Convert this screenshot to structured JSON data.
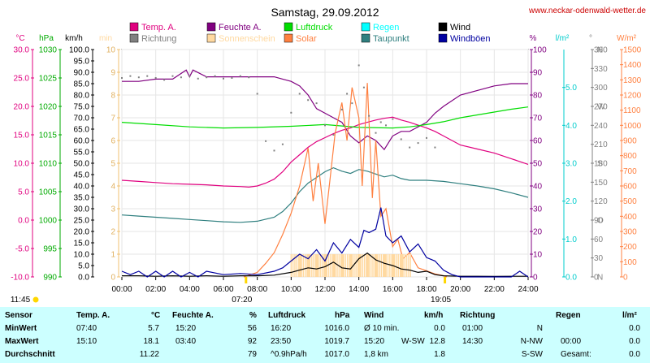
{
  "header": {
    "title": "Samstag, 29.09.2012",
    "site": "www.neckar-odenwald-wetter.de"
  },
  "legend": [
    {
      "label": "Temp. A.",
      "color": "#e0007f"
    },
    {
      "label": "Richtung",
      "color": "#808080"
    },
    {
      "label": "Feuchte A.",
      "color": "#800080"
    },
    {
      "label": "Sonnenschein",
      "color": "#ffd9a0"
    },
    {
      "label": "Luftdruck",
      "color": "#00dd00"
    },
    {
      "label": "Solar",
      "color": "#ff8040"
    },
    {
      "label": "Regen",
      "color": "#00ffff"
    },
    {
      "label": "Taupunkt",
      "color": "#2f7f7f"
    },
    {
      "label": "Wind",
      "color": "#000000"
    },
    {
      "label": "Windböen",
      "color": "#0000a0"
    }
  ],
  "axes": {
    "temp": {
      "unit": "°C",
      "color": "#e0007f",
      "ticks": [
        "30.0",
        "25.0",
        "20.0",
        "15.0",
        "10.0",
        "5.0",
        "0.0",
        "-5.0",
        "-10.0"
      ]
    },
    "pressure": {
      "unit": "hPa",
      "color": "#00aa00",
      "ticks": [
        "1030",
        "1025",
        "1020",
        "1015",
        "1010",
        "1005",
        "1000",
        "995",
        "990"
      ]
    },
    "wind": {
      "unit": "km/h",
      "color": "#000000",
      "ticks": [
        "100.0",
        "95.0",
        "90.0",
        "85.0",
        "80.0",
        "75.0",
        "70.0",
        "65.0",
        "60.0",
        "55.0",
        "50.0",
        "45.0",
        "40.0",
        "35.0",
        "30.0",
        "25.0",
        "20.0",
        "15.0",
        "10.0",
        "5.0",
        "0.0"
      ]
    },
    "sun": {
      "unit": "min",
      "color": "#ffd9a0",
      "ticks": [
        "10",
        "9",
        "8",
        "7",
        "6",
        "5",
        "4",
        "3",
        "2",
        "1",
        "0"
      ]
    },
    "humidity": {
      "unit": "%",
      "color": "#800080",
      "ticks": [
        "100",
        "90",
        "80",
        "70",
        "60",
        "50",
        "40",
        "30",
        "20",
        "10",
        "0"
      ]
    },
    "rain": {
      "unit": "l/m²",
      "color": "#00cccc",
      "ticks": [
        "5.0",
        "4.0",
        "3.0",
        "2.0",
        "1.0",
        "0.0"
      ]
    },
    "direction": {
      "unit": "°",
      "color": "#808080",
      "ticks": [
        "360",
        "330",
        "300",
        "270",
        "240",
        "210",
        "180",
        "150",
        "120",
        "90",
        "60",
        "30",
        "0"
      ],
      "labels": [
        "N",
        "",
        "",
        "W",
        "",
        "",
        "S",
        "",
        "",
        "O",
        "",
        "",
        "N"
      ]
    },
    "solar": {
      "unit": "W/m²",
      "color": "#ff8040",
      "ticks": [
        "1500",
        "1400",
        "1300",
        "1200",
        "1100",
        "1000",
        "900",
        "800",
        "700",
        "600",
        "500",
        "400",
        "300",
        "200",
        "100",
        "0"
      ]
    },
    "x": {
      "ticks": [
        "00:00",
        "02:00",
        "04:00",
        "06:00",
        "08:00",
        "10:00",
        "12:00",
        "14:00",
        "16:00",
        "18:00",
        "20:00",
        "22:00",
        "24:00"
      ]
    }
  },
  "markers": {
    "moonset": "11:45",
    "sunrise": "07:20",
    "sunset": "19:05"
  },
  "chart_data": {
    "type": "line",
    "title": "Samstag, 29.09.2012",
    "x_range": [
      0,
      24
    ],
    "series": [
      {
        "name": "Temp. A.",
        "axis": "°C",
        "ylim": [
          -10,
          30
        ],
        "x": [
          0,
          1,
          2,
          3,
          4,
          5,
          6,
          7,
          7.5,
          8,
          8.5,
          9,
          9.5,
          10,
          10.5,
          11,
          11.5,
          12,
          12.5,
          13,
          13.5,
          14,
          14.5,
          15,
          15.5,
          16,
          16.5,
          17,
          17.5,
          18,
          18.5,
          19,
          20,
          21,
          22,
          23,
          24
        ],
        "y": [
          7.0,
          6.8,
          6.6,
          6.4,
          6.3,
          6.2,
          6.0,
          5.9,
          5.8,
          6.0,
          6.5,
          7.2,
          8.5,
          10.2,
          11.5,
          12.8,
          13.8,
          14.5,
          15.2,
          15.8,
          16.2,
          16.8,
          17.2,
          17.6,
          17.9,
          18.1,
          17.6,
          17.2,
          16.7,
          16.2,
          15.6,
          14.8,
          13.2,
          12.5,
          11.8,
          10.8,
          9.8
        ]
      },
      {
        "name": "Feuchte A.",
        "axis": "%",
        "ylim": [
          0,
          100
        ],
        "x": [
          0,
          1,
          2,
          3,
          3.8,
          4,
          4.2,
          5,
          6,
          7,
          7.5,
          8,
          8.5,
          9,
          9.5,
          10,
          10.5,
          11,
          11.5,
          12,
          12.5,
          13,
          13.5,
          14,
          14.5,
          15,
          15.5,
          16,
          16.5,
          17,
          17.5,
          18,
          18.5,
          19,
          20,
          21,
          22,
          23,
          24
        ],
        "y": [
          86,
          86,
          87,
          87,
          91,
          88,
          91,
          88,
          88,
          88,
          88,
          88,
          88,
          88,
          87,
          86,
          84,
          80,
          74,
          72,
          70,
          68,
          62,
          59,
          62,
          60,
          56,
          62,
          64,
          64,
          66,
          68,
          72,
          75,
          80,
          82,
          84,
          85,
          85
        ]
      },
      {
        "name": "Luftdruck",
        "axis": "hPa",
        "ylim": [
          990,
          1030
        ],
        "x": [
          0,
          2,
          4,
          6,
          8,
          10,
          12,
          14,
          16,
          17,
          18,
          19,
          20,
          21,
          22,
          23,
          24
        ],
        "y": [
          1017.2,
          1016.8,
          1016.4,
          1016.2,
          1016.3,
          1016.5,
          1016.8,
          1016.3,
          1016.2,
          1016.4,
          1016.8,
          1017.3,
          1018.0,
          1018.5,
          1019.0,
          1019.5,
          1019.9
        ]
      },
      {
        "name": "Taupunkt",
        "axis": "°C",
        "ylim": [
          -10,
          30
        ],
        "x": [
          0,
          1,
          2,
          3,
          4,
          5,
          6,
          7,
          8,
          9,
          9.5,
          10,
          10.5,
          11,
          11.5,
          12,
          12.5,
          13,
          13.5,
          14,
          14.5,
          15,
          15.5,
          16,
          16.5,
          17,
          18,
          19,
          20,
          21,
          22,
          23,
          24
        ],
        "y": [
          0.9,
          0.7,
          0.5,
          0.3,
          0.1,
          -0.1,
          -0.3,
          -0.4,
          -0.2,
          0.5,
          1.5,
          3.0,
          5.0,
          6.5,
          7.5,
          8.5,
          9.2,
          8.6,
          8.2,
          8.9,
          8.6,
          8.1,
          7.6,
          7.9,
          7.3,
          7.0,
          7.0,
          6.8,
          6.4,
          6.0,
          5.5,
          4.8,
          4.0
        ]
      },
      {
        "name": "Solar",
        "axis": "W/m²",
        "ylim": [
          0,
          1500
        ],
        "x": [
          7.2,
          8,
          8.5,
          9,
          9.5,
          10,
          10.5,
          11,
          11.3,
          11.6,
          12,
          12.3,
          12.6,
          13,
          13.3,
          13.6,
          14,
          14.2,
          14.5,
          14.8,
          15,
          15.3,
          15.6,
          16,
          16.3,
          16.6,
          17,
          17.5,
          18,
          18.5,
          19,
          19.2
        ],
        "y": [
          0,
          30,
          90,
          160,
          280,
          420,
          600,
          850,
          500,
          750,
          350,
          650,
          950,
          1150,
          900,
          1250,
          1050,
          600,
          1280,
          520,
          900,
          400,
          450,
          200,
          250,
          120,
          160,
          60,
          40,
          20,
          8,
          0
        ]
      },
      {
        "name": "Sonnenschein",
        "axis": "min",
        "ylim": [
          0,
          10
        ],
        "x": [
          10,
          10.5,
          11,
          11.5,
          12,
          12.5,
          13,
          13.5,
          14,
          14.5,
          15,
          15.5,
          16,
          16.5,
          17
        ],
        "y": [
          1,
          1,
          1,
          1,
          1,
          1,
          1,
          1,
          1,
          1,
          1,
          1,
          1,
          1,
          0
        ]
      },
      {
        "name": "Wind",
        "axis": "km/h",
        "ylim": [
          0,
          100
        ],
        "x": [
          0,
          1,
          2,
          3,
          4,
          5,
          6,
          7,
          8,
          9,
          10,
          10.5,
          11,
          11.5,
          12,
          12.5,
          13,
          13.5,
          14,
          14.5,
          15,
          15.5,
          16,
          16.5,
          17,
          17.5,
          18,
          18.5,
          19,
          20,
          21,
          22,
          23,
          24
        ],
        "y": [
          0.5,
          0.5,
          0.3,
          0.5,
          0.3,
          0.5,
          0.3,
          0.5,
          0.5,
          0.8,
          2.0,
          3.0,
          4.0,
          3.5,
          4.5,
          6.5,
          4.0,
          3.5,
          8.0,
          10.5,
          7.5,
          6.0,
          5.0,
          3.5,
          3.0,
          2.0,
          2.5,
          1.0,
          0.5,
          0.3,
          0.3,
          0.2,
          0.3,
          0.3
        ]
      },
      {
        "name": "Windböen",
        "axis": "km/h",
        "ylim": [
          0,
          100
        ],
        "x": [
          0,
          0.5,
          1,
          1.5,
          2,
          2.5,
          3,
          3.5,
          4,
          4.5,
          5,
          6,
          7,
          8,
          9,
          9.5,
          10,
          10.5,
          11,
          11.5,
          12,
          12.5,
          13,
          13.5,
          14,
          14.3,
          14.6,
          15,
          15.3,
          15.6,
          16,
          16.5,
          17,
          17.5,
          18,
          18.5,
          19,
          19.5,
          20,
          21,
          22,
          23,
          23.5,
          24
        ],
        "y": [
          2.5,
          1.0,
          2.5,
          0,
          2.5,
          0,
          2.5,
          0,
          2.0,
          0,
          2.5,
          1.0,
          1.5,
          1.0,
          2.5,
          4.0,
          7.0,
          10.0,
          8.0,
          12.0,
          7.0,
          15.0,
          10.5,
          16.5,
          13.0,
          20.5,
          19.5,
          21.0,
          30.5,
          18.0,
          15.0,
          18.0,
          11.0,
          14.5,
          8.5,
          7.0,
          3.0,
          1.0,
          0,
          0,
          0,
          0,
          2.5,
          0
        ]
      },
      {
        "name": "Richtung",
        "axis": "°",
        "ylim": [
          0,
          360
        ],
        "x": [
          0,
          0.5,
          1,
          1.5,
          2,
          2.5,
          3,
          3.5,
          4,
          4.5,
          5,
          5.5,
          6,
          6.5,
          7,
          7.5,
          8,
          8.5,
          9,
          9.5,
          10,
          10.5,
          11,
          11.5,
          12,
          12.5,
          13,
          13.3,
          13.6,
          14,
          14.3,
          14.6,
          15,
          15.3,
          15.6,
          16,
          16.5,
          17,
          17.5,
          18,
          18.5
        ],
        "y": [
          315,
          318,
          316,
          318,
          315,
          312,
          318,
          316,
          318,
          314,
          316,
          318,
          314,
          315,
          318,
          316,
          290,
          215,
          200,
          210,
          260,
          290,
          280,
          275,
          240,
          225,
          265,
          290,
          275,
          335,
          300,
          255,
          228,
          245,
          240,
          250,
          218,
          205,
          212,
          220,
          205
        ]
      }
    ]
  },
  "summary": {
    "headers": {
      "sensor": "Sensor",
      "temp": "Temp. A.",
      "temp_unit": "°C",
      "hum": "Feuchte A.",
      "hum_unit": "%",
      "pres": "Luftdruck",
      "pres_unit": "hPa",
      "wind": "Wind",
      "wind_unit": "km/h",
      "dir": "Richtung",
      "rain": "Regen",
      "rain_unit": "l/m²"
    },
    "rows": [
      {
        "label": "MinWert",
        "temp_t": "07:40",
        "temp_v": "5.7",
        "hum_t": "15:20",
        "hum_v": "56",
        "pres_t": "16:20",
        "pres_v": "1016.0",
        "wind_t": "Ø 10 min.",
        "wind_d": "",
        "wind_v": "0.0",
        "dir_t": "01:00",
        "dir_v": "N",
        "rain_t": "",
        "rain_v": "0.0"
      },
      {
        "label": "MaxWert",
        "temp_t": "15:10",
        "temp_v": "18.1",
        "hum_t": "03:40",
        "hum_v": "92",
        "pres_t": "23:50",
        "pres_v": "1019.7",
        "wind_t": "15:20",
        "wind_d": "W-SW",
        "wind_v": "12.8",
        "dir_t": "14:30",
        "dir_v": "N-NW",
        "rain_t": "00:00",
        "rain_v": "0.0"
      },
      {
        "label": "Durchschnitt",
        "temp_t": "",
        "temp_v": "11.22",
        "hum_t": "",
        "hum_v": "79",
        "pres_t": "^0.9hPa/h",
        "pres_v": "1017.0",
        "wind_t": "1,8 km",
        "wind_d": "",
        "wind_v": "1.8",
        "dir_t": "",
        "dir_v": "S-SW",
        "rain_t": "Gesamt:",
        "rain_v": "0.0"
      }
    ]
  }
}
